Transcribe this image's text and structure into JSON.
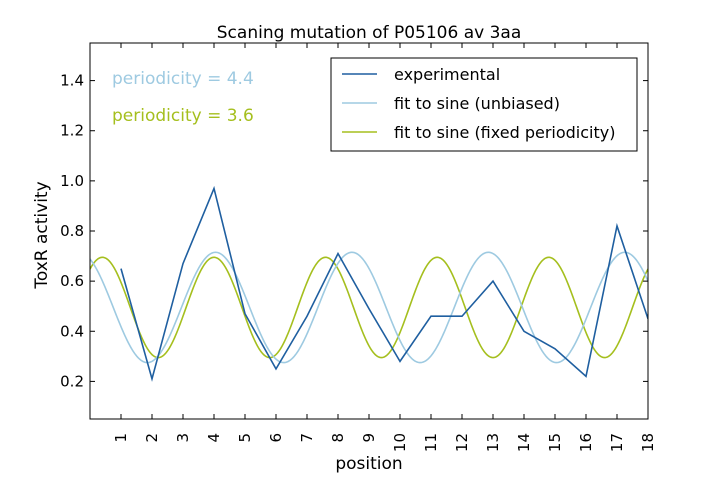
{
  "chart_data": {
    "type": "line",
    "title": "Scaning mutation of P05106 av 3aa",
    "xlabel": "position",
    "ylabel": "ToxR activity",
    "xlim": [
      0,
      18
    ],
    "ylim": [
      0.05,
      1.55
    ],
    "xticks": [
      "1",
      "2",
      "3",
      "4",
      "5",
      "6",
      "7",
      "8",
      "9",
      "10",
      "11",
      "12",
      "13",
      "14",
      "15",
      "16",
      "17",
      "18"
    ],
    "yticks": [
      "0.2",
      "0.4",
      "0.6",
      "0.8",
      "1.0",
      "1.2",
      "1.4"
    ],
    "grid": false,
    "legend_position": "top-right",
    "series": [
      {
        "name": "experimental",
        "color": "#1f5fa0",
        "x": [
          1,
          2,
          3,
          4,
          5,
          6,
          7,
          8,
          9,
          10,
          11,
          12,
          13,
          14,
          15,
          16,
          17,
          18
        ],
        "values": [
          0.65,
          0.21,
          0.67,
          0.97,
          0.47,
          0.25,
          0.46,
          0.71,
          0.49,
          0.28,
          0.46,
          0.46,
          0.6,
          0.4,
          0.33,
          0.22,
          0.82,
          0.45
        ]
      },
      {
        "name": "fit to sine (unbiased)",
        "color": "#9ecae1",
        "type": "sine",
        "periodicity": 4.4,
        "mean": 0.495,
        "amplitude": 0.22,
        "peak_x": 4.05
      },
      {
        "name": "fit to sine (fixed periodicity)",
        "color": "#a5bf1e",
        "type": "sine",
        "periodicity": 3.6,
        "mean": 0.495,
        "amplitude": 0.2,
        "peak_x": 4.0
      }
    ],
    "annotations": [
      {
        "text": "periodicity = 4.4",
        "color": "#9ecae1"
      },
      {
        "text": "periodicity = 3.6",
        "color": "#a5bf1e"
      }
    ]
  }
}
